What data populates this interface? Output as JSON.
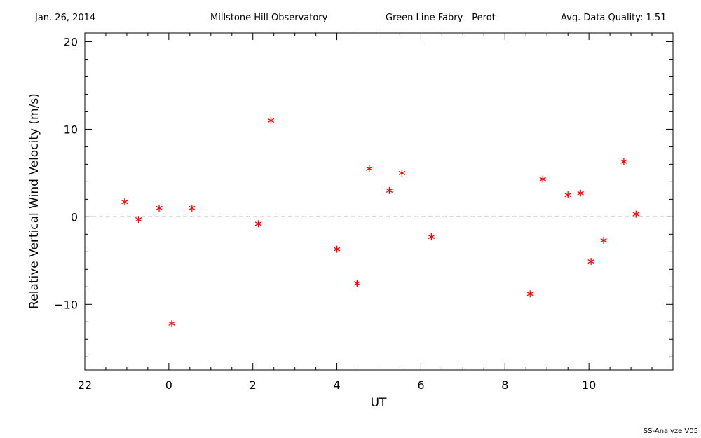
{
  "header": {
    "date": "Jan. 26, 2014",
    "observatory": "Millstone Hill Observatory",
    "instrument": "Green Line Fabry—Perot",
    "quality": "Avg. Data Quality: 1.51"
  },
  "footer": {
    "version": "SS-Analyze V05"
  },
  "chart_data": {
    "type": "scatter",
    "title": "",
    "xlabel": "UT",
    "ylabel": "Relative Vertical Wind Velocity (m/s)",
    "xlim": [
      -2.0,
      12.0
    ],
    "ylim": [
      -17.5,
      21.0
    ],
    "x_ticks": [
      22,
      0,
      2,
      4,
      6,
      8,
      10
    ],
    "y_ticks": [
      20,
      10,
      0,
      -10
    ],
    "zero_line": "dashed",
    "marker_color": "#ff0000",
    "marker": "asterisk",
    "series": [
      {
        "x": [
          -1.05,
          -0.72,
          -0.23,
          0.07,
          0.55,
          2.13,
          2.43,
          4.0,
          4.48,
          4.77,
          5.25,
          5.55,
          6.25,
          8.6,
          8.9,
          9.5,
          9.8,
          10.05,
          10.35,
          10.83,
          11.12
        ],
        "y": [
          1.7,
          -0.3,
          1.0,
          -12.2,
          1.0,
          -0.8,
          11.0,
          -3.7,
          -7.6,
          5.5,
          3.0,
          5.0,
          -2.3,
          -8.8,
          4.3,
          2.5,
          2.7,
          -5.1,
          -2.7,
          6.3,
          0.3
        ]
      }
    ]
  }
}
